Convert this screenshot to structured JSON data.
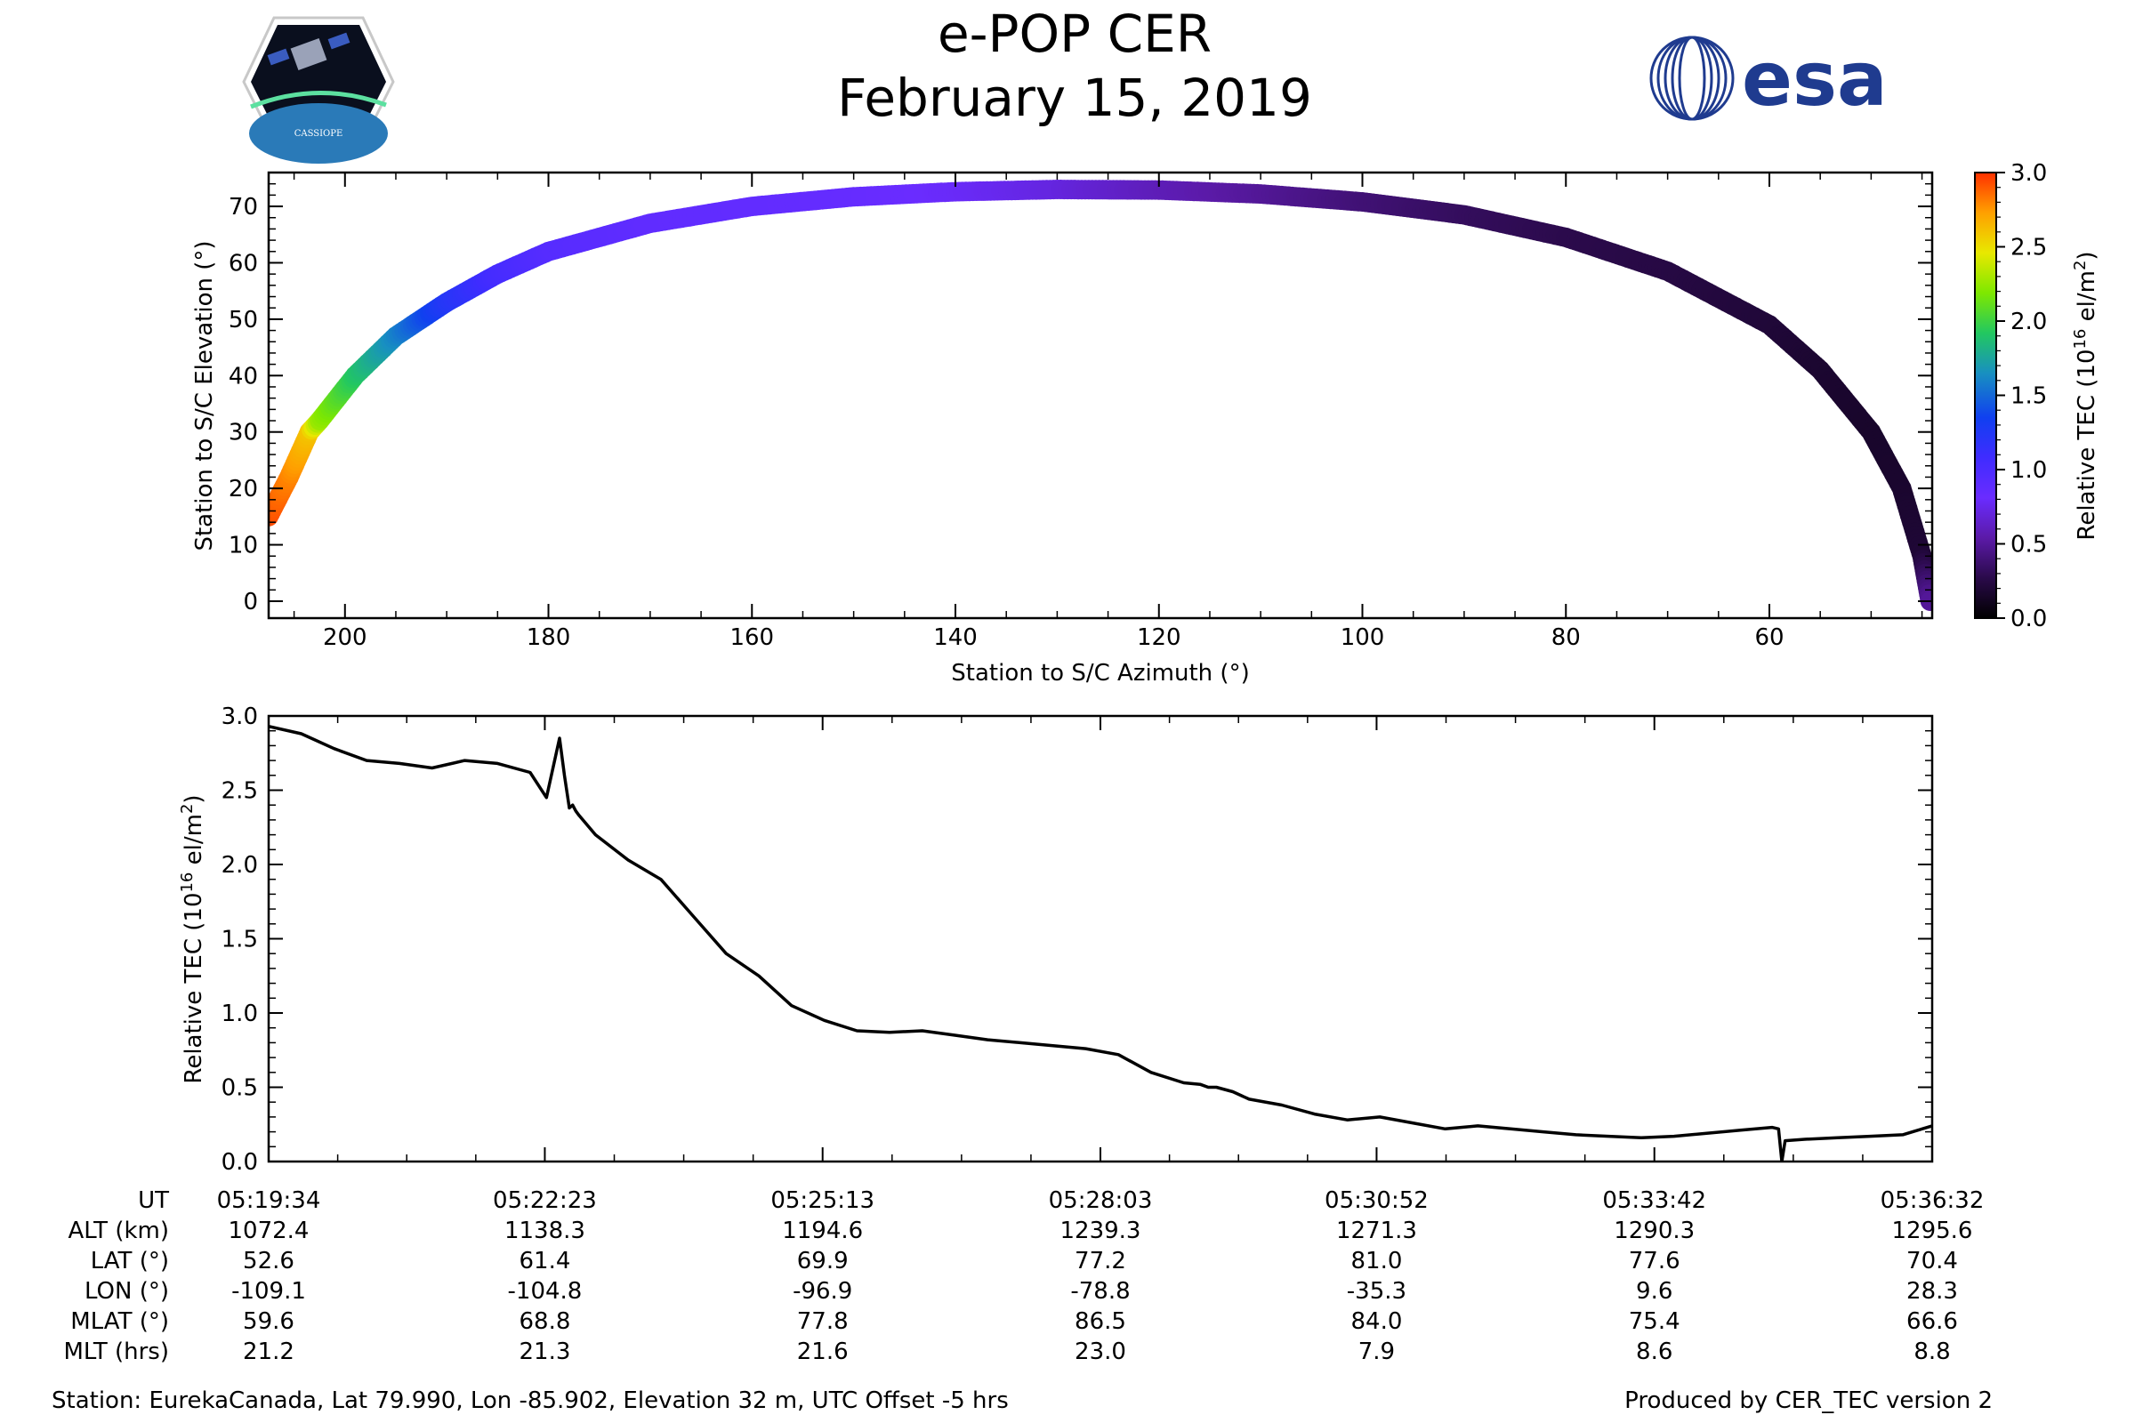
{
  "header": {
    "title_line1": "e-POP CER",
    "title_line2": "February 15, 2019",
    "cassiope_logo_text": "CASSIOPE",
    "esa_logo_text": "esa"
  },
  "colors": {
    "tec_line": "#000000",
    "axis": "#000000",
    "esa_blue": "#1f3b8f",
    "colormap": [
      "#000000",
      "#2a0a4a",
      "#5b1aa8",
      "#6a2cff",
      "#3f2cff",
      "#1040f0",
      "#1890c0",
      "#22c860",
      "#7ee800",
      "#e8e800",
      "#ffa000",
      "#ff3000"
    ]
  },
  "footer": {
    "station": "Station: EurekaCanada, Lat 79.990, Lon -85.902, Elevation 32 m, UTC Offset -5 hrs",
    "produced_by": "Produced by CER_TEC version 2"
  },
  "chart_data": [
    {
      "type": "scatter",
      "title": "",
      "xlabel": "Station to S/C Azimuth (°)",
      "ylabel": "Station to S/C Elevation (°)",
      "xlim": [
        207.5,
        44
      ],
      "ylim": [
        -3,
        76
      ],
      "xticks": [
        200,
        180,
        160,
        140,
        120,
        100,
        80,
        60
      ],
      "yticks": [
        0,
        10,
        20,
        30,
        40,
        50,
        60,
        70
      ],
      "colorbar": {
        "label_main": "Relative TEC (10",
        "label_sup": "16",
        "label_tail": " el/m",
        "label_sup2": "2",
        "label_end": ")",
        "range": [
          0.0,
          3.0
        ],
        "ticks": [
          "0.0",
          "0.5",
          "1.0",
          "1.5",
          "2.0",
          "2.5",
          "3.0"
        ]
      },
      "points": [
        {
          "az": 207.5,
          "el": 15,
          "tec": 2.93
        },
        {
          "az": 205.5,
          "el": 22,
          "tec": 2.8
        },
        {
          "az": 203.5,
          "el": 30,
          "tec": 2.6
        },
        {
          "az": 202.5,
          "el": 32,
          "tec": 2.25
        },
        {
          "az": 199,
          "el": 40,
          "tec": 1.9
        },
        {
          "az": 195,
          "el": 47,
          "tec": 1.6
        },
        {
          "az": 190,
          "el": 53,
          "tec": 1.25
        },
        {
          "az": 185,
          "el": 58,
          "tec": 1.05
        },
        {
          "az": 180,
          "el": 62,
          "tec": 0.95
        },
        {
          "az": 170,
          "el": 67,
          "tec": 0.88
        },
        {
          "az": 160,
          "el": 70,
          "tec": 0.87
        },
        {
          "az": 150,
          "el": 71.7,
          "tec": 0.85
        },
        {
          "az": 140,
          "el": 72.6,
          "tec": 0.8
        },
        {
          "az": 130,
          "el": 73,
          "tec": 0.72
        },
        {
          "az": 120,
          "el": 72.9,
          "tec": 0.6
        },
        {
          "az": 110,
          "el": 72.2,
          "tec": 0.5
        },
        {
          "az": 100,
          "el": 70.8,
          "tec": 0.4
        },
        {
          "az": 90,
          "el": 68.5,
          "tec": 0.33
        },
        {
          "az": 80,
          "el": 64.5,
          "tec": 0.28
        },
        {
          "az": 70,
          "el": 58.5,
          "tec": 0.25
        },
        {
          "az": 60,
          "el": 49,
          "tec": 0.21
        },
        {
          "az": 55,
          "el": 41,
          "tec": 0.18
        },
        {
          "az": 50,
          "el": 30,
          "tec": 0.16
        },
        {
          "az": 47,
          "el": 20,
          "tec": 0.17
        },
        {
          "az": 45,
          "el": 8,
          "tec": 0.2
        },
        {
          "az": 44.2,
          "el": 0,
          "tec": 0.5
        }
      ]
    },
    {
      "type": "line",
      "title": "",
      "xlabel": "",
      "ylabel_main": "Relative TEC (10",
      "ylabel_sup": "16",
      "ylabel_tail": " el/m",
      "ylabel_sup2": "2",
      "ylabel_end": ")",
      "xlim": [
        0,
        1018
      ],
      "ylim": [
        0.0,
        3.0
      ],
      "yticks": [
        "0.0",
        "0.5",
        "1.0",
        "1.5",
        "2.0",
        "2.5",
        "3.0"
      ],
      "x_unit": "seconds since 05:19:34",
      "series": [
        {
          "name": "Relative TEC",
          "x": [
            0,
            20,
            40,
            60,
            80,
            100,
            120,
            140,
            160,
            170,
            178,
            181,
            184,
            186,
            188,
            190,
            200,
            220,
            240,
            260,
            280,
            300,
            320,
            340,
            360,
            380,
            400,
            420,
            440,
            460,
            480,
            500,
            520,
            540,
            560,
            570,
            575,
            580,
            590,
            600,
            620,
            640,
            660,
            680,
            700,
            720,
            740,
            760,
            780,
            800,
            820,
            840,
            860,
            880,
            900,
            920,
            924,
            926,
            928,
            940,
            960,
            980,
            1000,
            1018
          ],
          "values": [
            2.93,
            2.88,
            2.78,
            2.7,
            2.68,
            2.65,
            2.7,
            2.68,
            2.62,
            2.45,
            2.85,
            2.6,
            2.38,
            2.4,
            2.36,
            2.33,
            2.2,
            2.03,
            1.9,
            1.65,
            1.4,
            1.25,
            1.05,
            0.95,
            0.88,
            0.87,
            0.88,
            0.85,
            0.82,
            0.8,
            0.78,
            0.76,
            0.72,
            0.6,
            0.53,
            0.52,
            0.5,
            0.5,
            0.47,
            0.42,
            0.38,
            0.32,
            0.28,
            0.3,
            0.26,
            0.22,
            0.24,
            0.22,
            0.2,
            0.18,
            0.17,
            0.16,
            0.17,
            0.19,
            0.21,
            0.23,
            0.22,
            0.0,
            0.14,
            0.15,
            0.16,
            0.17,
            0.18,
            0.24
          ]
        }
      ],
      "time_table": {
        "row_labels": [
          "UT",
          "ALT (km)",
          "LAT (°)",
          "LON (°)",
          "MLAT (°)",
          "MLT (hrs)"
        ],
        "columns": [
          {
            "t": 0,
            "values": [
              "05:19:34",
              "1072.4",
              "52.6",
              "-109.1",
              "59.6",
              "21.2"
            ]
          },
          {
            "t": 169,
            "values": [
              "05:22:23",
              "1138.3",
              "61.4",
              "-104.8",
              "68.8",
              "21.3"
            ]
          },
          {
            "t": 339,
            "values": [
              "05:25:13",
              "1194.6",
              "69.9",
              "-96.9",
              "77.8",
              "21.6"
            ]
          },
          {
            "t": 509,
            "values": [
              "05:28:03",
              "1239.3",
              "77.2",
              "-78.8",
              "86.5",
              "23.0"
            ]
          },
          {
            "t": 678,
            "values": [
              "05:30:52",
              "1271.3",
              "81.0",
              "-35.3",
              "84.0",
              "7.9"
            ]
          },
          {
            "t": 848,
            "values": [
              "05:33:42",
              "1290.3",
              "77.6",
              "9.6",
              "75.4",
              "8.6"
            ]
          },
          {
            "t": 1018,
            "values": [
              "05:36:32",
              "1295.6",
              "70.4",
              "28.3",
              "66.6",
              "8.8"
            ]
          }
        ]
      }
    }
  ]
}
